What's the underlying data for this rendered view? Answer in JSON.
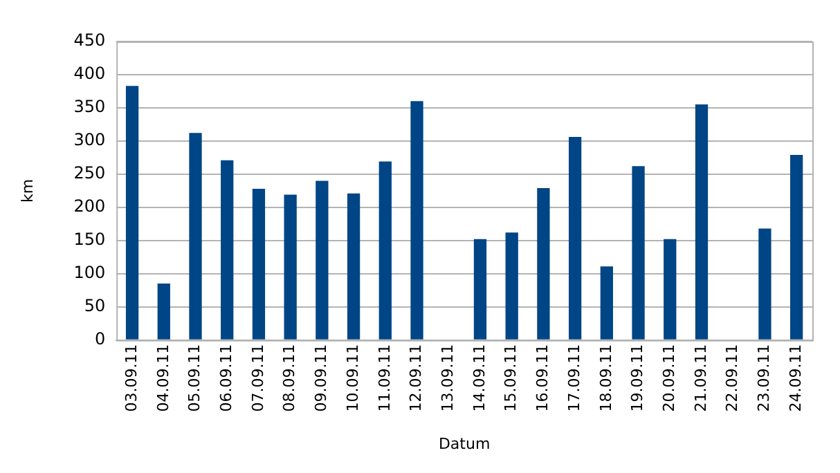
{
  "chart_data": {
    "type": "bar",
    "xlabel": "Datum",
    "ylabel": "km",
    "categories": [
      "03.09.11",
      "04.09.11",
      "05.09.11",
      "06.09.11",
      "07.09.11",
      "08.09.11",
      "09.09.11",
      "10.09.11",
      "11.09.11",
      "12.09.11",
      "13.09.11",
      "14.09.11",
      "15.09.11",
      "16.09.11",
      "17.09.11",
      "18.09.11",
      "19.09.11",
      "20.09.11",
      "21.09.11",
      "22.09.11",
      "23.09.11",
      "24.09.11"
    ],
    "values": [
      383,
      85,
      312,
      271,
      228,
      219,
      240,
      221,
      269,
      360,
      null,
      152,
      162,
      229,
      306,
      111,
      262,
      152,
      355,
      null,
      168,
      279
    ],
    "color": "#004586",
    "ylim": [
      0,
      450
    ],
    "yticks": [
      0,
      50,
      100,
      150,
      200,
      250,
      300,
      350,
      400,
      450
    ],
    "grid": "y"
  }
}
